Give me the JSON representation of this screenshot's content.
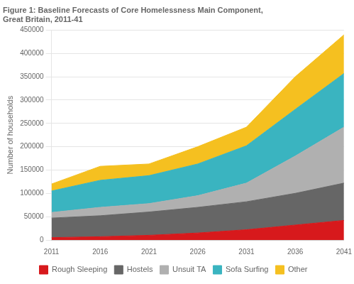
{
  "chart_data": {
    "type": "area",
    "title": [
      "Figure 1: Baseline Forecasts of Core Homelessness Main Component,",
      "Great Britain, 2011-41"
    ],
    "ylabel": "Number of households",
    "x": [
      2011,
      2016,
      2021,
      2026,
      2031,
      2036,
      2041
    ],
    "xlim": [
      2011,
      2041
    ],
    "xticks": [
      2011,
      2016,
      2021,
      2026,
      2031,
      2036,
      2041
    ],
    "ylim": [
      0,
      450000
    ],
    "yticks": [
      0,
      50000,
      100000,
      150000,
      200000,
      250000,
      300000,
      350000,
      400000,
      450000
    ],
    "stacked": true,
    "grid": "y",
    "legend": "bottom",
    "series": [
      {
        "name": "Rough Sleeping",
        "color": "#d7191c",
        "values": [
          5000,
          7000,
          10000,
          15000,
          22000,
          32000,
          42000
        ]
      },
      {
        "name": "Hostels",
        "color": "#666666",
        "values": [
          42000,
          45000,
          50000,
          55000,
          60000,
          68000,
          80000
        ]
      },
      {
        "name": "Unsuit TA",
        "color": "#b0b0b0",
        "values": [
          12000,
          18000,
          18000,
          25000,
          40000,
          80000,
          120000
        ]
      },
      {
        "name": "Sofa Surfing",
        "color": "#3ab4c0",
        "values": [
          46000,
          58000,
          60000,
          68000,
          80000,
          100000,
          115000
        ]
      },
      {
        "name": "Other",
        "color": "#f5c020",
        "values": [
          15000,
          30000,
          25000,
          37000,
          40000,
          70000,
          83000
        ]
      }
    ]
  }
}
